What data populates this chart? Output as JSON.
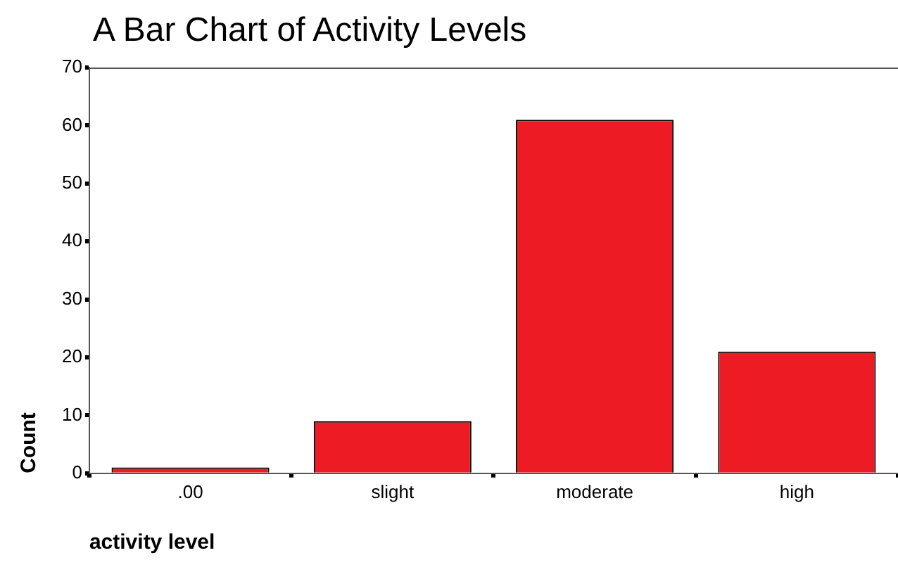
{
  "chart_data": {
    "type": "bar",
    "title": "A Bar Chart of Activity Levels",
    "xlabel": "activity level",
    "ylabel": "Count",
    "categories": [
      ".00",
      "slight",
      "moderate",
      "high"
    ],
    "values": [
      1,
      9,
      61,
      21
    ],
    "color": "#ed1c24",
    "ylim": [
      0,
      70
    ],
    "yticks": [
      0,
      10,
      20,
      30,
      40,
      50,
      60,
      70
    ],
    "grid": false,
    "legend": false
  }
}
